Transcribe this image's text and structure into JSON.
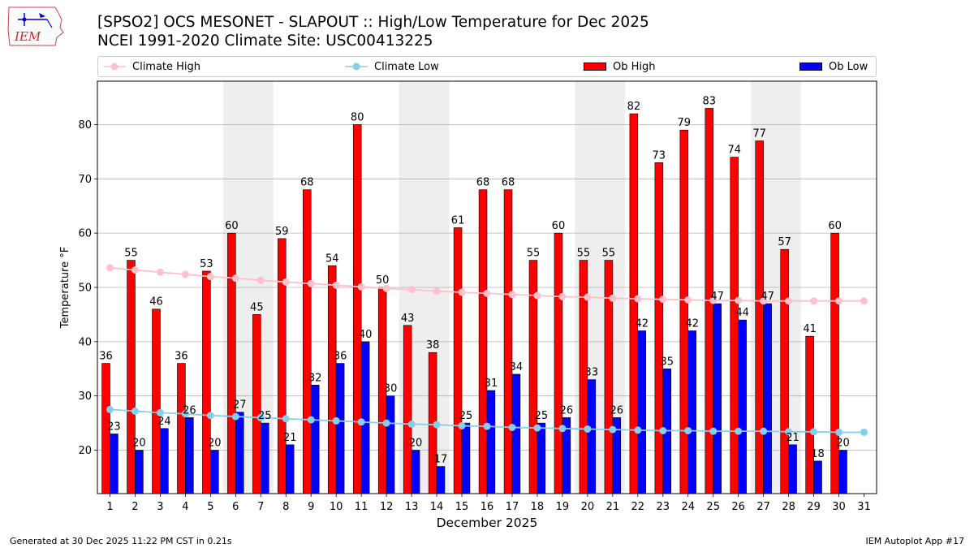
{
  "title_line1": "[SPSO2] OCS MESONET - SLAPOUT :: High/Low Temperature for Dec 2025",
  "title_line2": "NCEI 1991-2020 Climate Site: USC00413225",
  "logo_text": "IEM",
  "legend": {
    "climate_high": "Climate High",
    "climate_low": "Climate Low",
    "ob_high": "Ob High",
    "ob_low": "Ob Low"
  },
  "colors": {
    "ob_high": "#ff0000",
    "ob_low": "#0000ff",
    "climate_high": "#ffc0cb",
    "climate_low": "#87ceeb",
    "weekend_shade": "#eeeeee",
    "grid": "#b0b0b0"
  },
  "footer": {
    "left": "Generated at 30 Dec 2025 11:22 PM CST in 0.21s",
    "right": "IEM Autoplot App #17"
  },
  "chart_data": {
    "type": "bar",
    "title": "[SPSO2] OCS MESONET - SLAPOUT :: High/Low Temperature for Dec 2025",
    "xlabel": "December 2025",
    "ylabel": "Temperature °F",
    "categories": [
      "1",
      "2",
      "3",
      "4",
      "5",
      "6",
      "7",
      "8",
      "9",
      "10",
      "11",
      "12",
      "13",
      "14",
      "15",
      "16",
      "17",
      "18",
      "19",
      "20",
      "21",
      "22",
      "23",
      "24",
      "25",
      "26",
      "27",
      "28",
      "29",
      "30",
      "31"
    ],
    "ylim": [
      12,
      88
    ],
    "yticks": [
      20,
      30,
      40,
      50,
      60,
      70,
      80
    ],
    "grid": "horizontal",
    "legend_position": "top",
    "shaded_weekend_days": [
      [
        6,
        7
      ],
      [
        13,
        14
      ],
      [
        20,
        21
      ],
      [
        27,
        28
      ]
    ],
    "series": [
      {
        "name": "Ob High",
        "kind": "bar",
        "values": [
          36,
          55,
          46,
          36,
          53,
          60,
          45,
          59,
          68,
          54,
          80,
          50,
          43,
          38,
          61,
          68,
          68,
          55,
          60,
          55,
          55,
          82,
          73,
          79,
          83,
          74,
          77,
          57,
          41,
          60,
          null
        ]
      },
      {
        "name": "Ob Low",
        "kind": "bar",
        "values": [
          23,
          20,
          24,
          26,
          20,
          27,
          25,
          21,
          32,
          36,
          40,
          30,
          20,
          17,
          25,
          31,
          34,
          25,
          26,
          33,
          26,
          42,
          35,
          42,
          47,
          44,
          47,
          21,
          18,
          20,
          null
        ]
      },
      {
        "name": "Climate High",
        "kind": "line",
        "values": [
          53.6,
          53.2,
          52.8,
          52.4,
          52.0,
          51.7,
          51.3,
          51.0,
          50.7,
          50.4,
          50.1,
          49.8,
          49.6,
          49.3,
          49.1,
          48.9,
          48.7,
          48.5,
          48.3,
          48.2,
          48.0,
          47.9,
          47.8,
          47.7,
          47.6,
          47.6,
          47.5,
          47.5,
          47.5,
          47.5,
          47.5
        ]
      },
      {
        "name": "Climate Low",
        "kind": "line",
        "values": [
          27.5,
          27.2,
          26.9,
          26.7,
          26.4,
          26.2,
          26.0,
          25.8,
          25.6,
          25.4,
          25.2,
          25.0,
          24.8,
          24.7,
          24.5,
          24.4,
          24.2,
          24.1,
          24.0,
          23.9,
          23.8,
          23.7,
          23.6,
          23.6,
          23.5,
          23.5,
          23.5,
          23.4,
          23.4,
          23.3,
          23.3
        ]
      }
    ]
  }
}
